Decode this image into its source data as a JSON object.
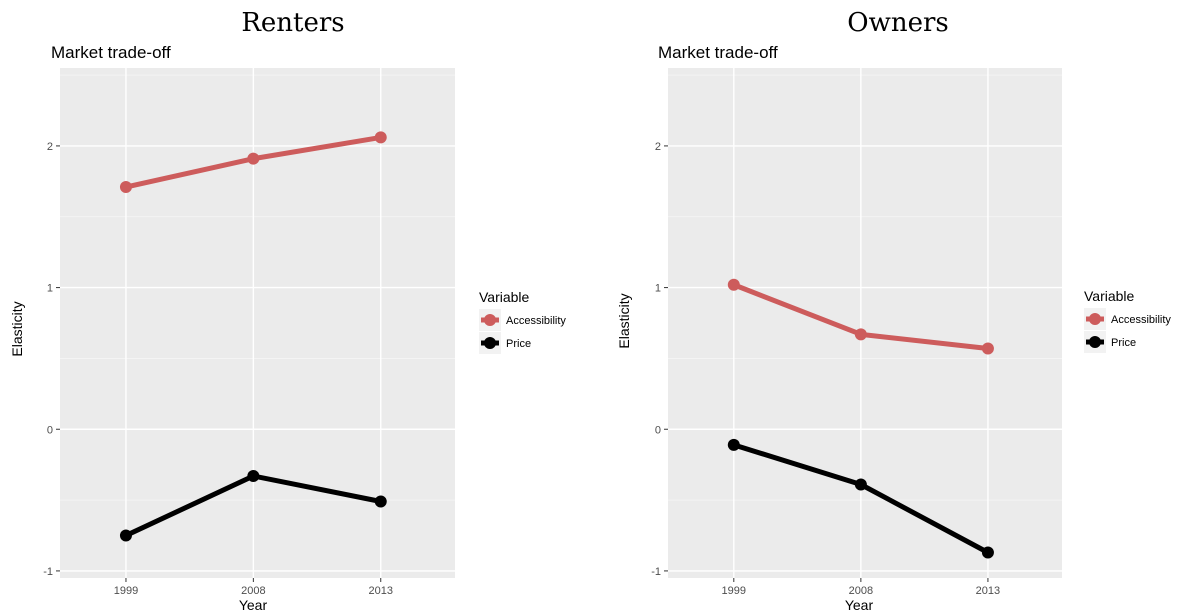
{
  "chart_data": [
    {
      "type": "line",
      "facet_title": "Renters",
      "title": "Market trade-off",
      "xlabel": "Year",
      "ylabel": "Elasticity",
      "categories": [
        "1999",
        "2008",
        "2013"
      ],
      "y_ticks": [
        "-1",
        "0",
        "1",
        "2"
      ],
      "ylim": [
        -1.05,
        2.55
      ],
      "grid": true,
      "legend_title": "Variable",
      "legend_position": "right",
      "series": [
        {
          "name": "Accessibility",
          "color": "#cd5c5c",
          "values": [
            1.71,
            1.91,
            2.06
          ]
        },
        {
          "name": "Price",
          "color": "#000000",
          "values": [
            -0.75,
            -0.33,
            -0.51
          ]
        }
      ]
    },
    {
      "type": "line",
      "facet_title": "Owners",
      "title": "Market trade-off",
      "xlabel": "Year",
      "ylabel": "Elasticity",
      "categories": [
        "1999",
        "2008",
        "2013"
      ],
      "y_ticks": [
        "-1",
        "0",
        "1",
        "2"
      ],
      "ylim": [
        -1.05,
        2.55
      ],
      "grid": true,
      "legend_title": "Variable",
      "legend_position": "right",
      "series": [
        {
          "name": "Accessibility",
          "color": "#cd5c5c",
          "values": [
            1.02,
            0.67,
            0.57
          ]
        },
        {
          "name": "Price",
          "color": "#000000",
          "values": [
            -0.11,
            -0.39,
            -0.87
          ]
        }
      ]
    }
  ]
}
